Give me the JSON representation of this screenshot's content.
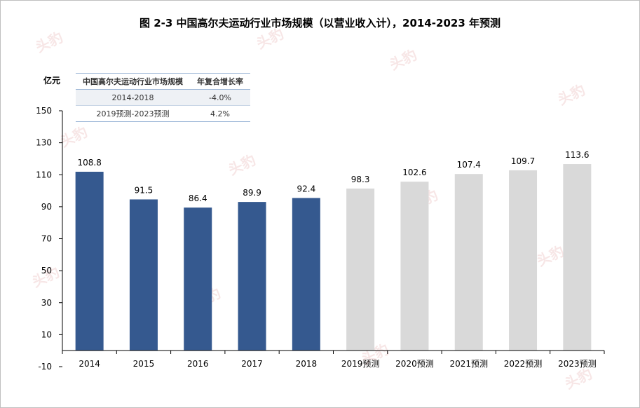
{
  "title": "图  2-3 中国高尔夫运动行业市场规模（以营业收入计），2014-2023 年预测",
  "unit_label": "亿元",
  "summary_table": {
    "headers": [
      "中国高尔夫运动行业市场规模",
      "年复合增长率"
    ],
    "rows": [
      [
        "2014-2018",
        "-4.0%"
      ],
      [
        "2019预测-2023预测",
        "4.2%"
      ]
    ]
  },
  "watermark": "头豹",
  "colors": {
    "actual": "#35598f",
    "forecast": "#d9d9d9",
    "axis": "#000000",
    "frame": "#bfbfbf"
  },
  "chart_data": {
    "type": "bar",
    "categories": [
      "2014",
      "2015",
      "2016",
      "2017",
      "2018",
      "2019预测",
      "2020预测",
      "2021预测",
      "2022预测",
      "2023预测"
    ],
    "values": [
      108.8,
      91.5,
      86.4,
      89.9,
      92.4,
      98.3,
      102.6,
      107.4,
      109.7,
      113.6
    ],
    "value_labels": [
      "108.8",
      "91.5",
      "86.4",
      "89.9",
      "92.4",
      "98.3",
      "102.6",
      "107.4",
      "109.7",
      "113.6"
    ],
    "bar_kind": [
      "actual",
      "actual",
      "actual",
      "actual",
      "actual",
      "forecast",
      "forecast",
      "forecast",
      "forecast",
      "forecast"
    ],
    "yticks": [
      150,
      130,
      110,
      90,
      70,
      50,
      30,
      10,
      -10
    ],
    "ylim": [
      -10,
      150
    ],
    "grid": false
  }
}
